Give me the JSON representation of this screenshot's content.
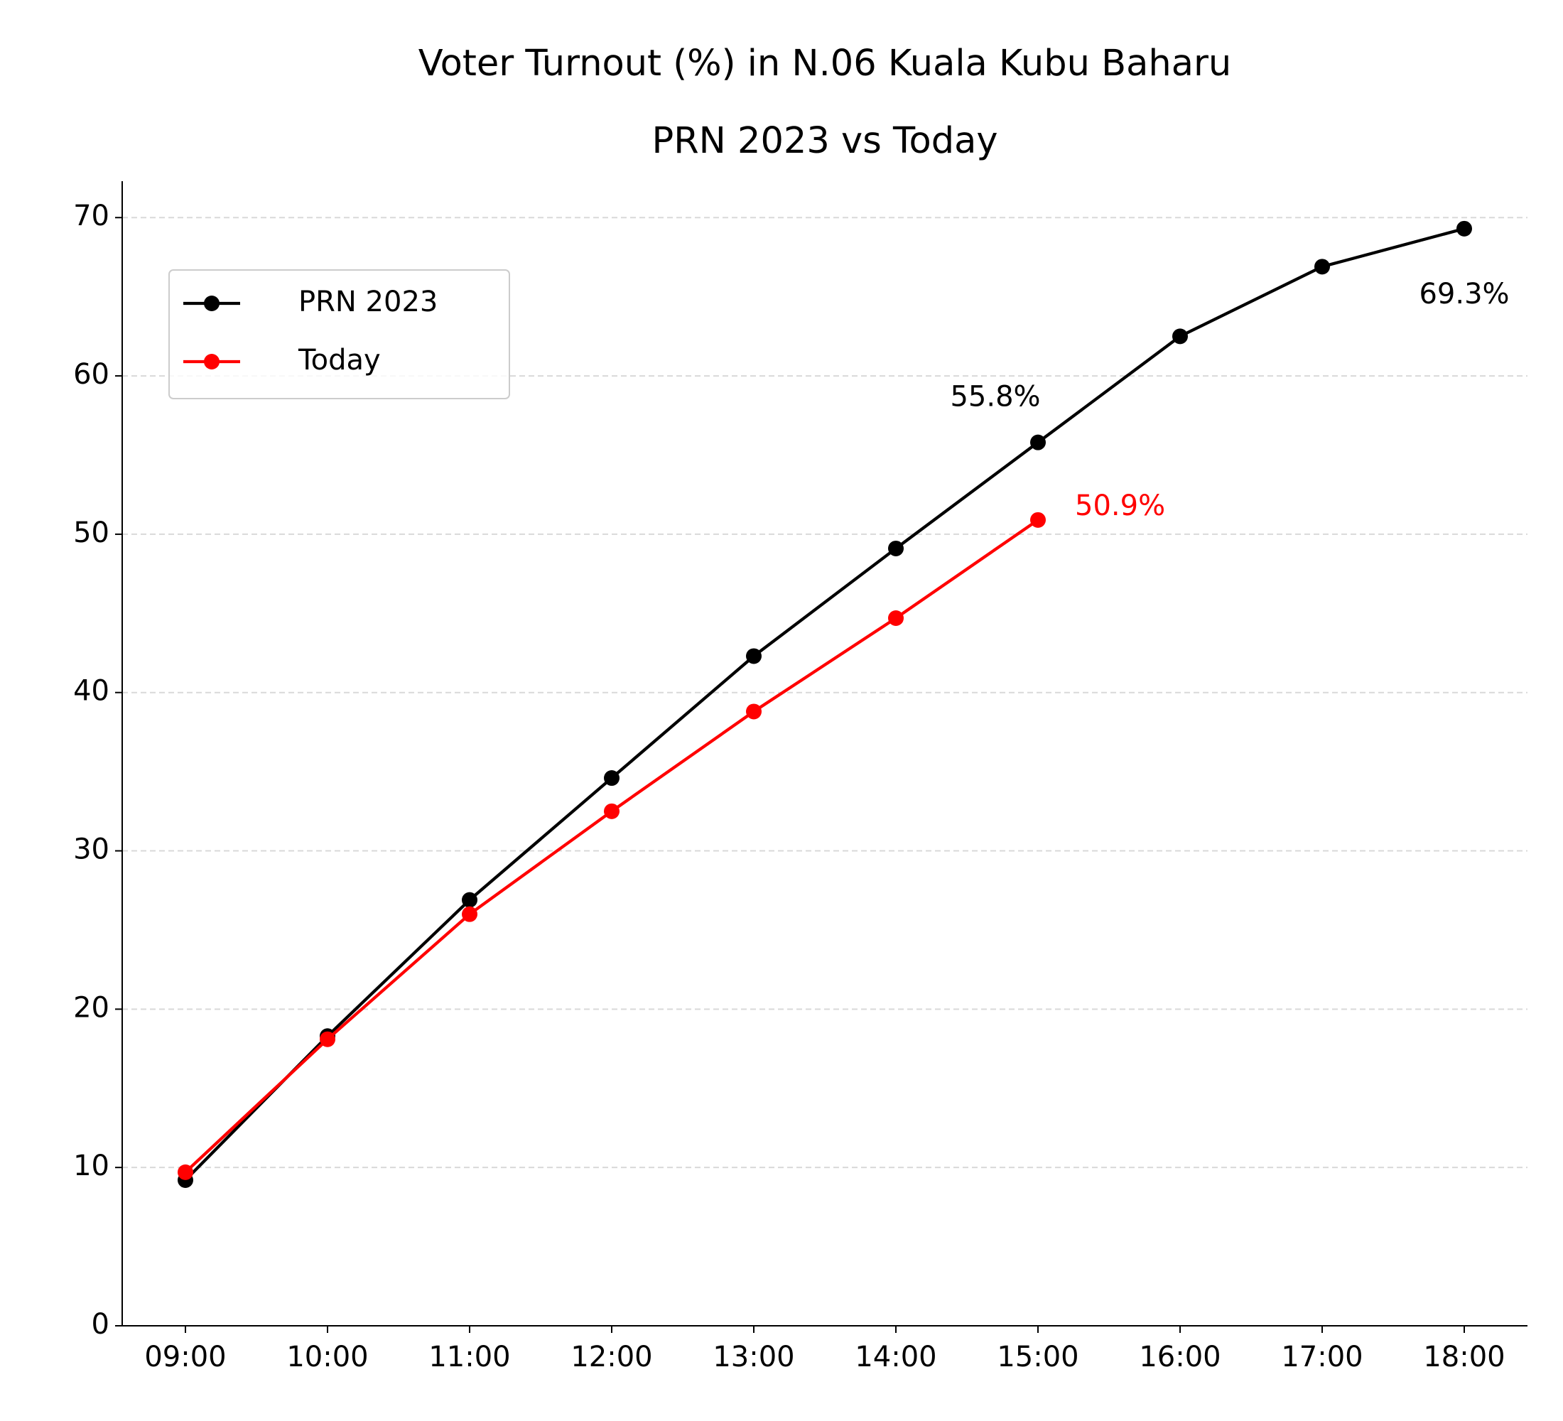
{
  "chart_data": {
    "type": "line",
    "title": "Voter Turnout (%) in N.06 Kuala Kubu Baharu",
    "subtitle": "PRN 2023 vs Today",
    "categories": [
      "09:00",
      "10:00",
      "11:00",
      "12:00",
      "13:00",
      "14:00",
      "15:00",
      "16:00",
      "17:00",
      "18:00"
    ],
    "series": [
      {
        "name": "PRN 2023",
        "color": "#000000",
        "values": [
          9.2,
          18.3,
          26.9,
          34.6,
          42.3,
          49.1,
          55.8,
          62.5,
          66.9,
          69.3
        ],
        "value_labels": [
          null,
          null,
          null,
          null,
          null,
          null,
          "55.8%",
          null,
          null,
          "69.3%"
        ]
      },
      {
        "name": "Today",
        "color": "#ff0000",
        "values": [
          9.7,
          18.1,
          26.0,
          32.5,
          38.8,
          44.7,
          50.9,
          null,
          null,
          null
        ],
        "value_labels": [
          null,
          null,
          null,
          null,
          null,
          null,
          "50.9%",
          null,
          null,
          null
        ]
      }
    ],
    "ylim": [
      0,
      72.3
    ],
    "yticks": [
      0,
      10,
      20,
      30,
      40,
      50,
      60,
      70
    ],
    "grid": true,
    "legend": "upper left"
  }
}
